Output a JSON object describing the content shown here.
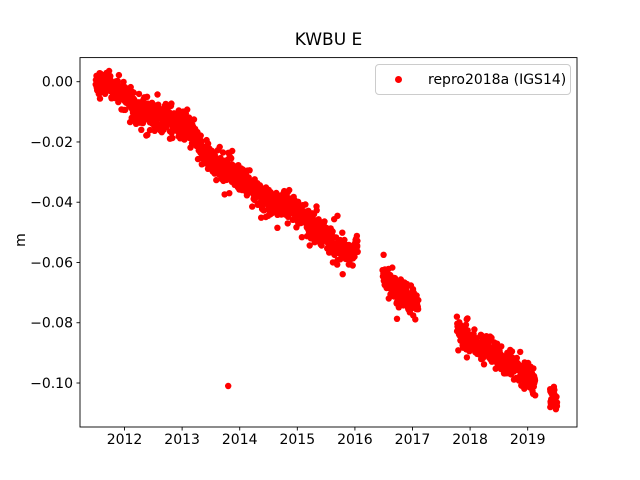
{
  "window": {
    "background": "#ffffff"
  },
  "chart_data": {
    "type": "scatter",
    "title": "KWBU E",
    "xlabel": "",
    "ylabel": "m",
    "grid": false,
    "xlim": [
      2011.227,
      2019.856
    ],
    "ylim": [
      -0.1146,
      0.008
    ],
    "xticks": [
      2012,
      2013,
      2014,
      2015,
      2016,
      2017,
      2018,
      2019
    ],
    "xtick_labels": [
      "2012",
      "2013",
      "2014",
      "2015",
      "2016",
      "2017",
      "2018",
      "2019"
    ],
    "yticks": [
      0.0,
      -0.02,
      -0.04,
      -0.06,
      -0.08,
      -0.1
    ],
    "ytick_labels": [
      "0.00",
      "−0.02",
      "−0.04",
      "−0.06",
      "−0.08",
      "−0.10"
    ],
    "legend": {
      "label": "repro2018a (IGS14)",
      "position": "upper right"
    },
    "series_name": "repro2018a (IGS14)",
    "marker": {
      "color": "#ff0000",
      "radius_px": 3.2
    },
    "axis_color": "#000000",
    "segments": [
      {
        "name": "2011.5-2016.05",
        "step_years": 0.004,
        "noise_std": 0.0023,
        "anchors": [
          [
            2011.5,
            -0.0005
          ],
          [
            2011.72,
            -0.0012
          ],
          [
            2011.9,
            -0.003
          ],
          [
            2012.0,
            -0.005
          ],
          [
            2012.15,
            -0.0078
          ],
          [
            2012.3,
            -0.0095
          ],
          [
            2012.5,
            -0.0108
          ],
          [
            2012.72,
            -0.0122
          ],
          [
            2012.95,
            -0.0142
          ],
          [
            2013.15,
            -0.0165
          ],
          [
            2013.32,
            -0.0215
          ],
          [
            2013.5,
            -0.0265
          ],
          [
            2013.7,
            -0.029
          ],
          [
            2013.9,
            -0.0305
          ],
          [
            2014.1,
            -0.033
          ],
          [
            2014.32,
            -0.0372
          ],
          [
            2014.55,
            -0.0408
          ],
          [
            2014.75,
            -0.0398
          ],
          [
            2014.95,
            -0.0422
          ],
          [
            2015.15,
            -0.0455
          ],
          [
            2015.4,
            -0.05
          ],
          [
            2015.65,
            -0.0537
          ],
          [
            2015.88,
            -0.0572
          ],
          [
            2015.97,
            -0.057
          ],
          [
            2016.05,
            -0.0528
          ]
        ]
      },
      {
        "name": "2016.48-2017.10",
        "step_years": 0.004,
        "noise_std": 0.0021,
        "anchors": [
          [
            2016.48,
            -0.0622
          ],
          [
            2016.6,
            -0.0672
          ],
          [
            2016.8,
            -0.0702
          ],
          [
            2017.0,
            -0.0718
          ],
          [
            2017.1,
            -0.073
          ]
        ]
      },
      {
        "name": "2017.77-2019.13",
        "step_years": 0.004,
        "noise_std": 0.0022,
        "anchors": [
          [
            2017.77,
            -0.0822
          ],
          [
            2017.88,
            -0.0845
          ],
          [
            2018.05,
            -0.0862
          ],
          [
            2018.25,
            -0.0885
          ],
          [
            2018.5,
            -0.091
          ],
          [
            2018.75,
            -0.0945
          ],
          [
            2019.0,
            -0.098
          ],
          [
            2019.13,
            -0.1
          ]
        ]
      },
      {
        "name": "2019.39-2019.51",
        "step_years": 0.003,
        "noise_std": 0.0016,
        "anchors": [
          [
            2019.39,
            -0.1042
          ],
          [
            2019.51,
            -0.1062
          ]
        ]
      }
    ],
    "outliers": [
      [
        2013.8,
        -0.101
      ],
      [
        2013.71,
        -0.0235
      ],
      [
        2013.87,
        -0.023
      ],
      [
        2016.73,
        -0.0787
      ]
    ]
  }
}
